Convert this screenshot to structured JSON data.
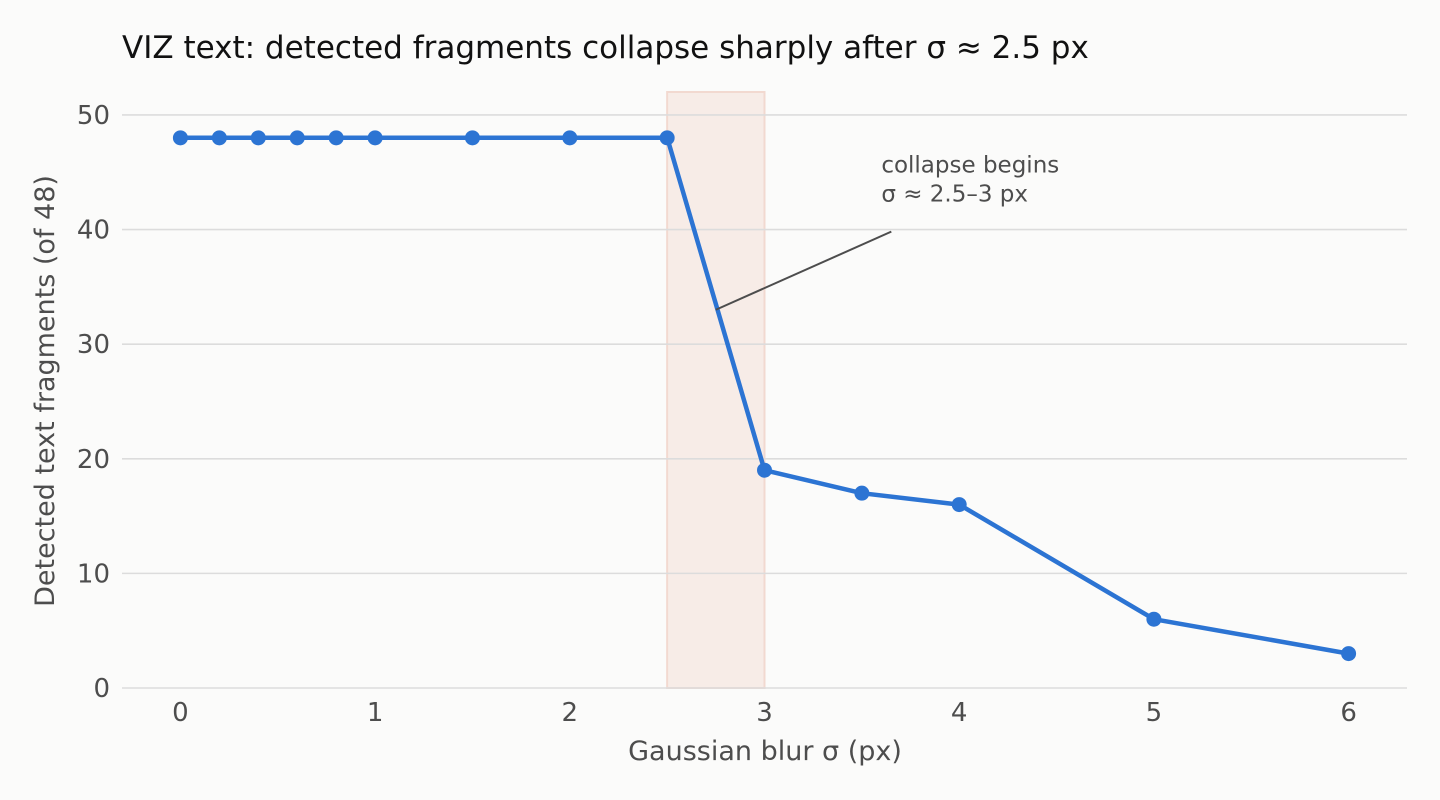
{
  "chart_data": {
    "type": "line",
    "title": "VIZ text: detected fragments collapse sharply after σ ≈ 2.5 px",
    "xlabel": "Gaussian blur σ (px)",
    "ylabel": "Detected text fragments (of 48)",
    "xlim": [
      -0.3,
      6.3
    ],
    "ylim": [
      0,
      52
    ],
    "xticks": [
      0,
      1,
      2,
      3,
      4,
      5,
      6
    ],
    "yticks": [
      0,
      10,
      20,
      30,
      40,
      50
    ],
    "grid": "horizontal",
    "series": [
      {
        "x": [
          0,
          0.2,
          0.4,
          0.6,
          0.8,
          1.0,
          1.5,
          2.0,
          2.5,
          3.0,
          3.5,
          4.0,
          5.0,
          6.0
        ],
        "y": [
          48,
          48,
          48,
          48,
          48,
          48,
          48,
          48,
          48,
          19,
          17,
          16,
          6,
          3
        ],
        "color": "#2c74d3"
      }
    ],
    "highlight_band": {
      "x0": 2.5,
      "x1": 3.0,
      "color": "#f2d9d0"
    },
    "annotation": {
      "lines": [
        "collapse begins",
        "σ ≈ 2.5–3 px"
      ],
      "text_at": [
        3.6,
        42
      ],
      "arrow_to": [
        2.75,
        33
      ]
    }
  }
}
